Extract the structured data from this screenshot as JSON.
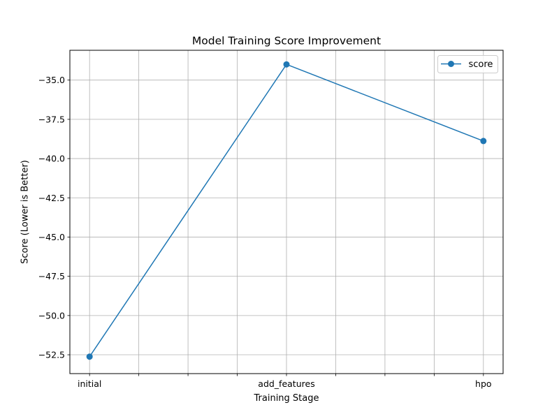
{
  "chart_data": {
    "type": "line",
    "title": "Model Training Score Improvement",
    "xlabel": "Training Stage",
    "ylabel": "Score (Lower is Better)",
    "categories": [
      "initial",
      "add_features",
      "hpo"
    ],
    "series": [
      {
        "name": "score",
        "values": [
          -52.62,
          -34.0,
          -38.88
        ],
        "color": "#1f77b4",
        "marker": "circle"
      }
    ],
    "ylim": [
      -53.7,
      -33.1
    ],
    "yticks": [
      -35.0,
      -37.5,
      -40.0,
      -42.5,
      -45.0,
      -47.5,
      -50.0,
      -52.5
    ],
    "ytick_labels": [
      "−35.0",
      "−37.5",
      "−40.0",
      "−42.5",
      "−45.0",
      "−47.5",
      "−50.0",
      "−52.5"
    ],
    "xticks_all": [
      0,
      0.25,
      0.5,
      0.75,
      1,
      1.25,
      1.5,
      1.75,
      2
    ],
    "xlim": [
      -0.1,
      2.1
    ],
    "grid": true,
    "legend_position": "top-right"
  }
}
